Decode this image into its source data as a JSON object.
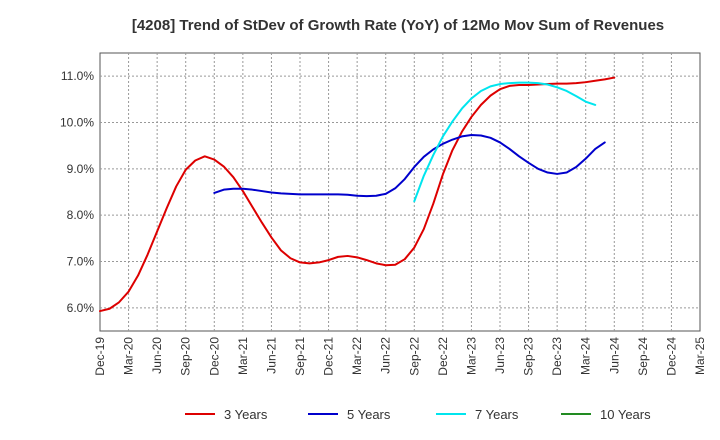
{
  "chart_data": {
    "type": "line",
    "title": "[4208]  Trend of StDev of Growth Rate (YoY) of 12Mo Mov Sum of Revenues",
    "xlabel": "",
    "ylabel": "",
    "x_ticks": [
      "Dec-19",
      "Mar-20",
      "Jun-20",
      "Sep-20",
      "Dec-20",
      "Mar-21",
      "Jun-21",
      "Sep-21",
      "Dec-21",
      "Mar-22",
      "Jun-22",
      "Sep-22",
      "Dec-22",
      "Mar-23",
      "Jun-23",
      "Sep-23",
      "Dec-23",
      "Mar-24",
      "Jun-24",
      "Sep-24",
      "Dec-24",
      "Mar-25"
    ],
    "y_ticks": [
      "6.0%",
      "7.0%",
      "8.0%",
      "9.0%",
      "10.0%",
      "11.0%"
    ],
    "y_tick_values": [
      6,
      7,
      8,
      9,
      10,
      11
    ],
    "ylim": [
      5.5,
      11.5
    ],
    "x_index_range": [
      0,
      63
    ],
    "grid": true,
    "legend_position": "bottom",
    "series": [
      {
        "name": "3 Years",
        "color": "#dd0000",
        "points": [
          [
            0,
            5.93
          ],
          [
            1,
            5.98
          ],
          [
            2,
            6.12
          ],
          [
            3,
            6.35
          ],
          [
            4,
            6.7
          ],
          [
            5,
            7.15
          ],
          [
            6,
            7.65
          ],
          [
            7,
            8.15
          ],
          [
            8,
            8.62
          ],
          [
            9,
            8.98
          ],
          [
            10,
            9.18
          ],
          [
            11,
            9.27
          ],
          [
            12,
            9.2
          ],
          [
            13,
            9.05
          ],
          [
            14,
            8.82
          ],
          [
            15,
            8.52
          ],
          [
            16,
            8.18
          ],
          [
            17,
            7.84
          ],
          [
            18,
            7.52
          ],
          [
            19,
            7.24
          ],
          [
            20,
            7.07
          ],
          [
            21,
            6.98
          ],
          [
            22,
            6.96
          ],
          [
            23,
            6.98
          ],
          [
            24,
            7.03
          ],
          [
            25,
            7.1
          ],
          [
            26,
            7.12
          ],
          [
            27,
            7.09
          ],
          [
            28,
            7.03
          ],
          [
            29,
            6.96
          ],
          [
            30,
            6.92
          ],
          [
            31,
            6.93
          ],
          [
            32,
            7.05
          ],
          [
            33,
            7.3
          ],
          [
            34,
            7.7
          ],
          [
            35,
            8.25
          ],
          [
            36,
            8.88
          ],
          [
            37,
            9.4
          ],
          [
            38,
            9.8
          ],
          [
            39,
            10.12
          ],
          [
            40,
            10.38
          ],
          [
            41,
            10.58
          ],
          [
            42,
            10.72
          ],
          [
            43,
            10.79
          ],
          [
            44,
            10.81
          ],
          [
            45,
            10.81
          ],
          [
            46,
            10.82
          ],
          [
            47,
            10.83
          ],
          [
            48,
            10.84
          ],
          [
            49,
            10.84
          ],
          [
            50,
            10.85
          ],
          [
            51,
            10.87
          ],
          [
            52,
            10.9
          ],
          [
            53,
            10.93
          ],
          [
            54,
            10.97
          ]
        ]
      },
      {
        "name": "5 Years",
        "color": "#0000cc",
        "points": [
          [
            12,
            8.48
          ],
          [
            13,
            8.55
          ],
          [
            14,
            8.57
          ],
          [
            15,
            8.57
          ],
          [
            16,
            8.55
          ],
          [
            17,
            8.52
          ],
          [
            18,
            8.49
          ],
          [
            19,
            8.47
          ],
          [
            20,
            8.46
          ],
          [
            21,
            8.45
          ],
          [
            22,
            8.45
          ],
          [
            23,
            8.45
          ],
          [
            24,
            8.45
          ],
          [
            25,
            8.45
          ],
          [
            26,
            8.44
          ],
          [
            27,
            8.42
          ],
          [
            28,
            8.41
          ],
          [
            29,
            8.42
          ],
          [
            30,
            8.46
          ],
          [
            31,
            8.58
          ],
          [
            32,
            8.78
          ],
          [
            33,
            9.04
          ],
          [
            34,
            9.26
          ],
          [
            35,
            9.42
          ],
          [
            36,
            9.54
          ],
          [
            37,
            9.63
          ],
          [
            38,
            9.7
          ],
          [
            39,
            9.73
          ],
          [
            40,
            9.72
          ],
          [
            41,
            9.67
          ],
          [
            42,
            9.57
          ],
          [
            43,
            9.43
          ],
          [
            44,
            9.27
          ],
          [
            45,
            9.13
          ],
          [
            46,
            9.0
          ],
          [
            47,
            8.92
          ],
          [
            48,
            8.89
          ],
          [
            49,
            8.92
          ],
          [
            50,
            9.04
          ],
          [
            51,
            9.22
          ],
          [
            52,
            9.43
          ],
          [
            53,
            9.57
          ]
        ]
      },
      {
        "name": "7 Years",
        "color": "#00e5ee",
        "points": [
          [
            33,
            8.3
          ],
          [
            34,
            8.85
          ],
          [
            35,
            9.3
          ],
          [
            36,
            9.7
          ],
          [
            37,
            10.02
          ],
          [
            38,
            10.3
          ],
          [
            39,
            10.52
          ],
          [
            40,
            10.68
          ],
          [
            41,
            10.78
          ],
          [
            42,
            10.83
          ],
          [
            43,
            10.85
          ],
          [
            44,
            10.86
          ],
          [
            45,
            10.86
          ],
          [
            46,
            10.85
          ],
          [
            47,
            10.82
          ],
          [
            48,
            10.76
          ],
          [
            49,
            10.68
          ],
          [
            50,
            10.57
          ],
          [
            51,
            10.45
          ],
          [
            52,
            10.38
          ]
        ]
      },
      {
        "name": "10 Years",
        "color": "#228b22",
        "points": []
      }
    ]
  }
}
